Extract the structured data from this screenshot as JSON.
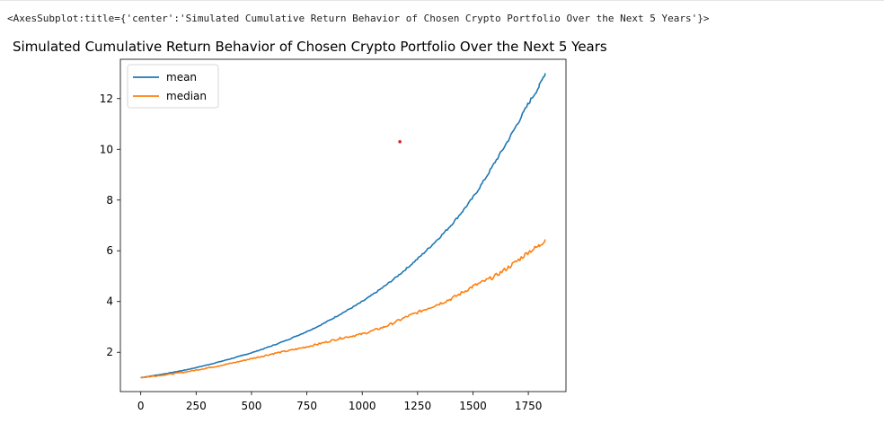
{
  "output_repr": "<AxesSubplot:title={'center':'Simulated Cumulative Return Behavior of Chosen Crypto Portfolio Over the Next 5 Years'}>",
  "chart_data": {
    "type": "line",
    "title": "Simulated Cumulative Return Behavior of Chosen Crypto Portfolio Over the Next 5 Years",
    "xlabel": "",
    "ylabel": "",
    "xlim": [
      -92,
      1920
    ],
    "ylim": [
      0.45,
      13.55
    ],
    "xticks": [
      0,
      250,
      500,
      750,
      1000,
      1250,
      1500,
      1750
    ],
    "yticks": [
      2,
      4,
      6,
      8,
      10,
      12
    ],
    "grid": false,
    "legend_position": "upper left",
    "series": [
      {
        "name": "mean",
        "color": "#1f77b4",
        "x": [
          0,
          100,
          200,
          300,
          400,
          500,
          600,
          700,
          800,
          900,
          1000,
          1100,
          1200,
          1300,
          1400,
          1500,
          1600,
          1700,
          1750,
          1800,
          1826
        ],
        "y": [
          1.0,
          1.14,
          1.3,
          1.5,
          1.73,
          1.98,
          2.28,
          2.63,
          3.02,
          3.5,
          4.0,
          4.6,
          5.3,
          6.1,
          7.0,
          8.1,
          9.5,
          11.0,
          11.8,
          12.5,
          13.0
        ]
      },
      {
        "name": "median",
        "color": "#ff7f0e",
        "x": [
          0,
          100,
          200,
          300,
          400,
          500,
          600,
          700,
          800,
          900,
          1000,
          1100,
          1200,
          1300,
          1400,
          1500,
          1600,
          1700,
          1750,
          1800,
          1826
        ],
        "y": [
          1.0,
          1.1,
          1.22,
          1.38,
          1.55,
          1.75,
          1.95,
          2.12,
          2.32,
          2.55,
          2.72,
          3.0,
          3.4,
          3.75,
          4.1,
          4.6,
          5.0,
          5.6,
          5.95,
          6.2,
          6.45
        ]
      }
    ],
    "annotations": [
      {
        "type": "point",
        "x": 1170,
        "y": 10.3,
        "color": "#d62728"
      }
    ]
  }
}
